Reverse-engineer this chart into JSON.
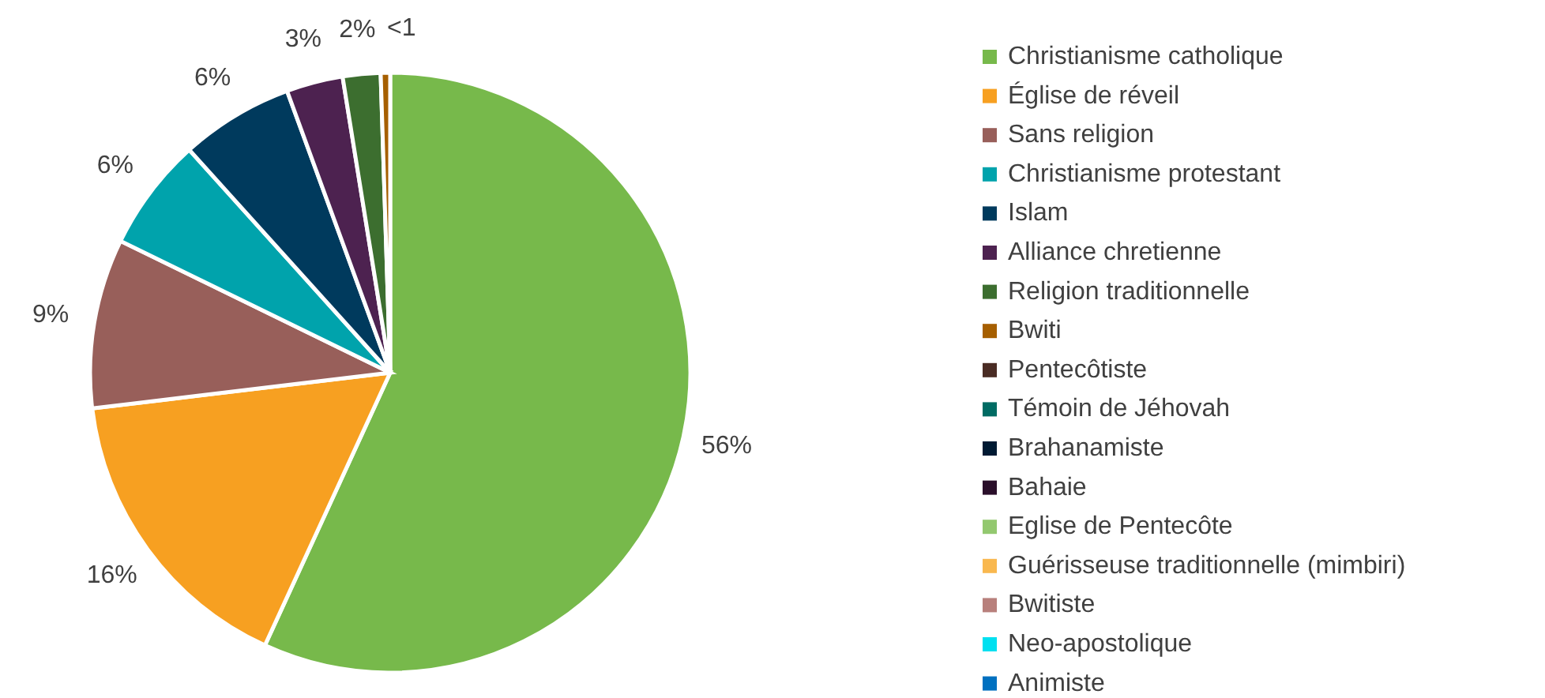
{
  "chart_data": {
    "type": "pie",
    "categories": [
      "Christianisme catholique",
      "Église de réveil",
      "Sans religion",
      "Christianisme protestant",
      "Islam",
      "Alliance chretienne",
      "Religion traditionnelle",
      "Bwiti",
      "Pentecôtiste",
      "Témoin de Jéhovah",
      "Brahanamiste",
      "Bahaie",
      "Eglise de Pentecôte",
      "Guérisseuse traditionnelle (mimbiri)",
      "Bwitiste",
      "Neo-apostolique",
      "Animiste"
    ],
    "values": [
      56,
      16,
      9,
      6,
      6,
      3,
      2,
      0.5,
      0,
      0,
      0,
      0,
      0,
      0,
      0,
      0,
      0
    ],
    "value_labels": [
      "56%",
      "16%",
      "9%",
      "6%",
      "6%",
      "3%",
      "2%",
      "<1",
      null,
      null,
      null,
      null,
      null,
      null,
      null,
      null,
      null
    ],
    "colors": [
      "#77b94b",
      "#f7a021",
      "#985f5a",
      "#00a3ac",
      "#003a5d",
      "#4d2250",
      "#3c6e2f",
      "#a65f00",
      "#4a2c24",
      "#006b63",
      "#001a33",
      "#2a0f2a",
      "#93c86f",
      "#f9b84f",
      "#b8807c",
      "#00e0f0",
      "#0070c0"
    ],
    "legend": "right"
  }
}
